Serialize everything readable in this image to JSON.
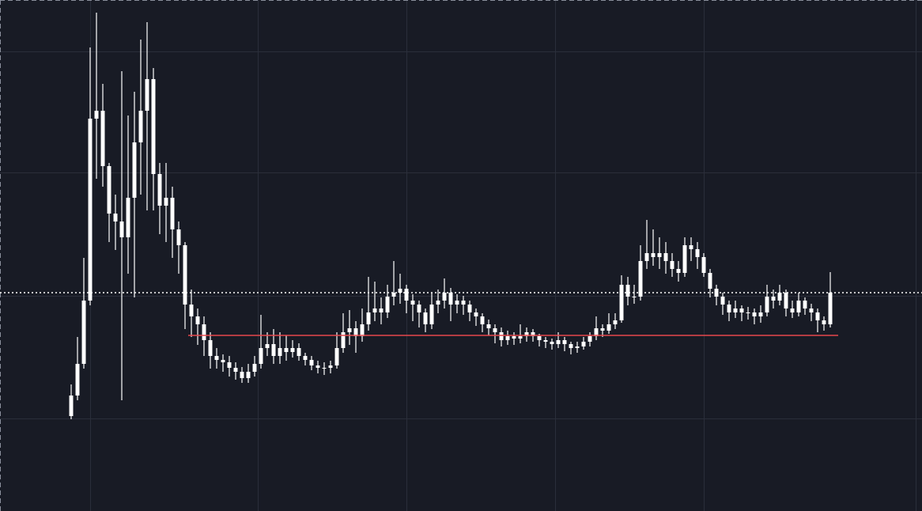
{
  "chart_data": {
    "type": "candlestick",
    "color": "#ffffff",
    "background": "#181b25",
    "grid": true,
    "grid_color": "#2a2e3a",
    "xlim": [
      -11.25,
      134.5
    ],
    "xticks": [
      3,
      29.5,
      53,
      76.5,
      100,
      133.5
    ],
    "ylim": [
      0,
      646
    ],
    "yticks": [
      117,
      272,
      428,
      581
    ],
    "last_price": 276,
    "last_price_color": "#ffffff",
    "level": {
      "value": 222,
      "from": 18.5,
      "to": 121.25,
      "color": "#e5484d"
    },
    "open": [
      120,
      146,
      186,
      266,
      496,
      506,
      436,
      376,
      366,
      346,
      396,
      466,
      506,
      546,
      426,
      386,
      396,
      356,
      336,
      261,
      246,
      236,
      216,
      196,
      191,
      188,
      181,
      176,
      168,
      176,
      186,
      206,
      211,
      196,
      206,
      201,
      206,
      196,
      191,
      184,
      181,
      181,
      184,
      206,
      226,
      231,
      221,
      236,
      251,
      256,
      251,
      271,
      276,
      281,
      266,
      261,
      251,
      236,
      261,
      266,
      276,
      261,
      266,
      261,
      251,
      246,
      236,
      231,
      226,
      216,
      221,
      218,
      221,
      226,
      221,
      216,
      214,
      211,
      216,
      211,
      206,
      208,
      214,
      221,
      231,
      228,
      236,
      241,
      286,
      271,
      271,
      316,
      326,
      321,
      326,
      316,
      306,
      301,
      336,
      331,
      321,
      301,
      281,
      271,
      261,
      251,
      256,
      251,
      251,
      246,
      251,
      271,
      266,
      276,
      256,
      251,
      266,
      256,
      251,
      241,
      236
    ],
    "high": [
      160,
      220,
      320,
      586,
      630,
      540,
      440,
      400,
      556,
      500,
      530,
      596,
      618,
      560,
      440,
      440,
      410,
      366,
      340,
      280,
      256,
      246,
      226,
      206,
      198,
      196,
      188,
      182,
      186,
      196,
      248,
      226,
      230,
      226,
      222,
      216,
      212,
      200,
      196,
      190,
      188,
      190,
      226,
      250,
      254,
      240,
      256,
      296,
      290,
      270,
      286,
      316,
      300,
      286,
      274,
      266,
      256,
      276,
      280,
      294,
      282,
      274,
      272,
      266,
      256,
      250,
      242,
      236,
      232,
      228,
      226,
      236,
      232,
      230,
      224,
      220,
      218,
      226,
      220,
      214,
      214,
      220,
      226,
      246,
      236,
      250,
      250,
      298,
      296,
      286,
      336,
      368,
      356,
      346,
      340,
      326,
      316,
      346,
      346,
      340,
      326,
      306,
      286,
      276,
      266,
      266,
      260,
      258,
      256,
      260,
      286,
      280,
      286,
      280,
      266,
      276,
      270,
      262,
      256,
      246,
      302
    ],
    "low": [
      116,
      140,
      180,
      260,
      420,
      410,
      340,
      330,
      140,
      300,
      270,
      400,
      380,
      380,
      350,
      340,
      320,
      300,
      230,
      220,
      210,
      196,
      180,
      180,
      176,
      170,
      166,
      162,
      162,
      170,
      180,
      196,
      186,
      186,
      190,
      194,
      190,
      184,
      178,
      174,
      172,
      174,
      180,
      200,
      210,
      200,
      214,
      228,
      240,
      236,
      244,
      260,
      262,
      250,
      240,
      232,
      226,
      230,
      250,
      256,
      240,
      250,
      248,
      240,
      234,
      226,
      222,
      212,
      208,
      210,
      210,
      212,
      214,
      214,
      208,
      206,
      204,
      206,
      202,
      198,
      200,
      204,
      208,
      216,
      220,
      224,
      230,
      238,
      260,
      262,
      266,
      306,
      310,
      306,
      300,
      296,
      290,
      296,
      316,
      306,
      296,
      270,
      260,
      248,
      240,
      244,
      240,
      242,
      236,
      238,
      246,
      256,
      260,
      246,
      244,
      246,
      248,
      240,
      226,
      228,
      232
    ],
    "close": [
      146,
      186,
      266,
      496,
      506,
      436,
      376,
      366,
      346,
      396,
      466,
      506,
      546,
      426,
      386,
      396,
      356,
      336,
      261,
      246,
      236,
      216,
      196,
      191,
      188,
      181,
      176,
      168,
      176,
      186,
      206,
      211,
      196,
      206,
      201,
      206,
      196,
      191,
      184,
      181,
      181,
      184,
      206,
      226,
      231,
      221,
      236,
      251,
      256,
      251,
      271,
      276,
      281,
      266,
      261,
      251,
      236,
      261,
      266,
      276,
      261,
      266,
      261,
      251,
      246,
      236,
      231,
      226,
      216,
      221,
      218,
      221,
      226,
      221,
      216,
      214,
      211,
      216,
      211,
      206,
      208,
      214,
      221,
      231,
      228,
      236,
      241,
      286,
      271,
      271,
      316,
      326,
      321,
      326,
      316,
      306,
      301,
      336,
      331,
      321,
      301,
      281,
      271,
      261,
      251,
      256,
      251,
      251,
      246,
      251,
      271,
      266,
      276,
      256,
      251,
      266,
      256,
      251,
      241,
      236,
      276
    ]
  }
}
